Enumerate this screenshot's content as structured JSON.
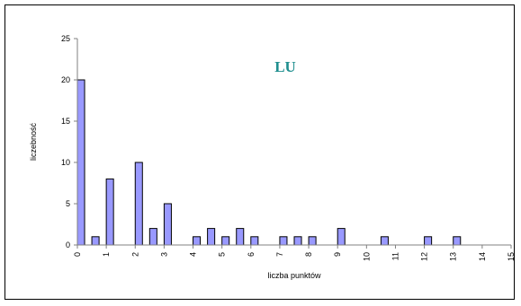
{
  "chart_data": {
    "type": "bar",
    "xlabel": "liczba punktów",
    "ylabel": "liczebność",
    "annotation": "LU",
    "colors": {
      "bar_fill": "#9999ff",
      "bar_stroke": "#000000",
      "annotation": "#1f8f8f",
      "axis": "#808080"
    },
    "ylim": [
      0,
      25
    ],
    "yticks": [
      0,
      5,
      10,
      15,
      20,
      25
    ],
    "xlim": [
      0,
      15
    ],
    "xticks": [
      "0",
      "1",
      "2",
      "3",
      "4",
      "5",
      "6",
      "7",
      "8",
      "9",
      "10",
      "11",
      "12",
      "13",
      "14",
      "15"
    ],
    "bar_width": 0.25,
    "grid": false,
    "points": [
      {
        "x": 0.0,
        "y": 20
      },
      {
        "x": 0.5,
        "y": 1
      },
      {
        "x": 1.0,
        "y": 8
      },
      {
        "x": 2.0,
        "y": 10
      },
      {
        "x": 2.5,
        "y": 2
      },
      {
        "x": 3.0,
        "y": 5
      },
      {
        "x": 4.0,
        "y": 1
      },
      {
        "x": 4.5,
        "y": 2
      },
      {
        "x": 5.0,
        "y": 1
      },
      {
        "x": 5.5,
        "y": 2
      },
      {
        "x": 6.0,
        "y": 1
      },
      {
        "x": 7.0,
        "y": 1
      },
      {
        "x": 7.5,
        "y": 1
      },
      {
        "x": 8.0,
        "y": 1
      },
      {
        "x": 9.0,
        "y": 2
      },
      {
        "x": 10.5,
        "y": 1
      },
      {
        "x": 12.0,
        "y": 1
      },
      {
        "x": 13.0,
        "y": 1
      }
    ]
  }
}
